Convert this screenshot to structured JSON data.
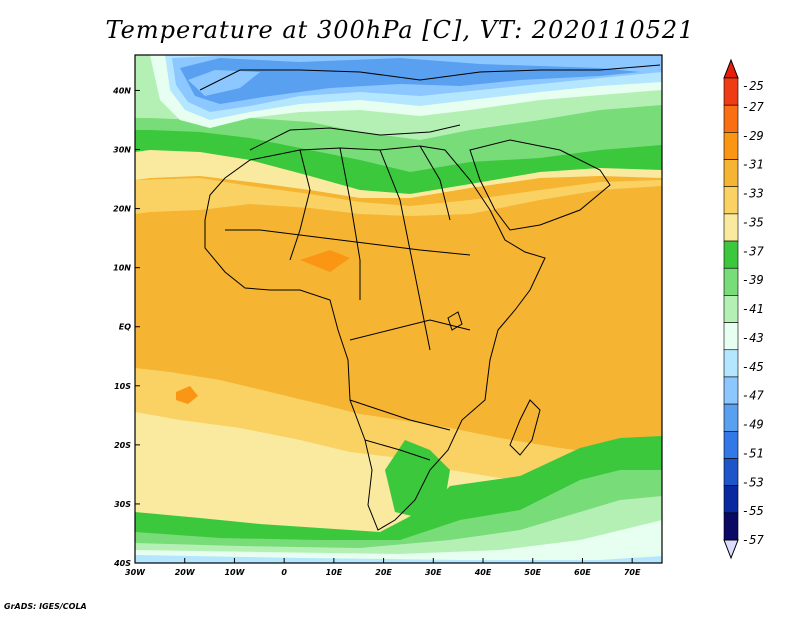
{
  "title": "Temperature at 300hPa [C], VT: 2020110521",
  "credit": "GrADS: IGES/COLA",
  "map": {
    "lon_range": [
      -30,
      76
    ],
    "lat_range": [
      -40,
      46
    ],
    "lon_ticks": [
      {
        "value": -30,
        "label": "30W"
      },
      {
        "value": -20,
        "label": "20W"
      },
      {
        "value": -10,
        "label": "10W"
      },
      {
        "value": 0,
        "label": "0"
      },
      {
        "value": 10,
        "label": "10E"
      },
      {
        "value": 20,
        "label": "20E"
      },
      {
        "value": 30,
        "label": "30E"
      },
      {
        "value": 40,
        "label": "40E"
      },
      {
        "value": 50,
        "label": "50E"
      },
      {
        "value": 60,
        "label": "60E"
      },
      {
        "value": 70,
        "label": "70E"
      }
    ],
    "lat_ticks": [
      {
        "value": 40,
        "label": "40N"
      },
      {
        "value": 30,
        "label": "30N"
      },
      {
        "value": 20,
        "label": "20N"
      },
      {
        "value": 10,
        "label": "10N"
      },
      {
        "value": 0,
        "label": "EQ"
      },
      {
        "value": -10,
        "label": "10S"
      },
      {
        "value": -20,
        "label": "20S"
      },
      {
        "value": -30,
        "label": "30S"
      },
      {
        "value": -40,
        "label": "40S"
      }
    ]
  },
  "colorbar": {
    "labels": [
      "-25",
      "-27",
      "-29",
      "-31",
      "-33",
      "-35",
      "-37",
      "-39",
      "-41",
      "-43",
      "-45",
      "-47",
      "-49",
      "-51",
      "-53",
      "-55",
      "-57"
    ],
    "colors": [
      "#f03c14",
      "#fa6e14",
      "#fa9614",
      "#f5b432",
      "#fad264",
      "#faeaa0",
      "#3cc83c",
      "#78dc78",
      "#b4f0b4",
      "#e6fff0",
      "#b4e6ff",
      "#8cc8ff",
      "#5aa0f0",
      "#3278e6",
      "#1e55c8",
      "#0a28a0",
      "#0a0a64"
    ],
    "top_color": "#e61e0a",
    "bottom_color": "#dcdcff"
  }
}
